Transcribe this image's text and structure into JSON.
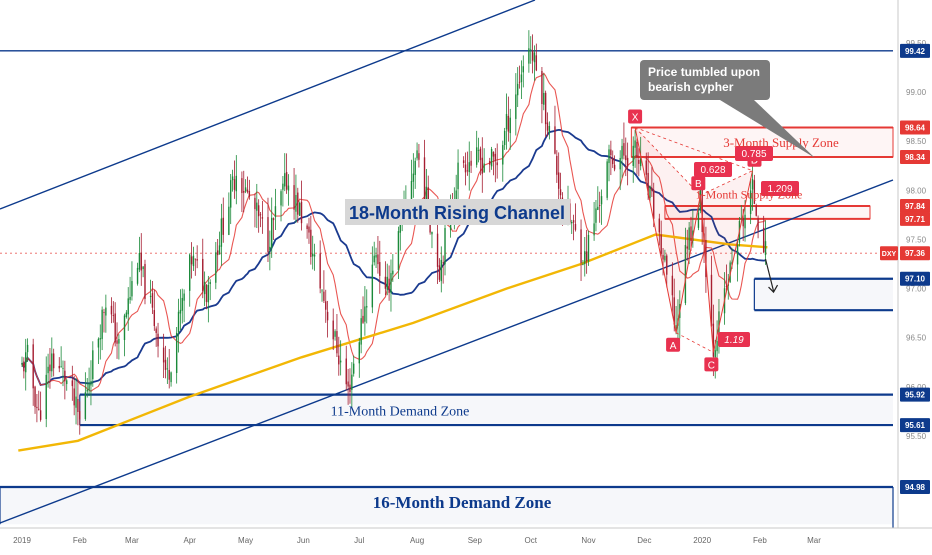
{
  "chart_data": {
    "type": "candlestick",
    "symbol": "DXY",
    "x_ticks": [
      "2019",
      "Feb",
      "Mar",
      "Apr",
      "May",
      "Jun",
      "Jul",
      "Aug",
      "Sep",
      "Oct",
      "Nov",
      "Dec",
      "2020",
      "Feb",
      "Mar"
    ],
    "y_ticks": [
      "99.50",
      "99.00",
      "98.50",
      "98.00",
      "97.50",
      "97.00",
      "96.50",
      "96.00",
      "95.50",
      "95.00"
    ],
    "ylim": [
      94.8,
      99.7
    ],
    "level_labels": [
      "99.42",
      "98.64",
      "98.34",
      "97.84",
      "97.71",
      "97.36",
      "97.10",
      "95.92",
      "95.61",
      "94.98"
    ],
    "current_price": {
      "label": "DXY",
      "value": "97.36"
    },
    "zones": [
      {
        "name": "3-Month Supply Zone",
        "top": 98.64,
        "bottom": 98.34,
        "color": "#e53935"
      },
      {
        "name": "1-Month Supply Zone",
        "top": 97.84,
        "bottom": 97.71,
        "color": "#e53935"
      },
      {
        "name": "11-Month Demand Zone",
        "top": 95.92,
        "bottom": 95.61,
        "color": "#0d3a8c"
      },
      {
        "name": "16-Month Demand Zone",
        "top": 94.98,
        "bottom": 94.6,
        "color": "#0d3a8c"
      },
      {
        "name": "",
        "top": 97.1,
        "bottom": 96.78,
        "color": "#0d3a8c"
      }
    ],
    "pattern_points": [
      {
        "label": "X",
        "date": "2019-11-26",
        "value": 98.64
      },
      {
        "label": "A",
        "date": "2019-12-18",
        "value": 96.55
      },
      {
        "label": "B",
        "date": "2019-12-31",
        "value": 97.95
      },
      {
        "label": "C",
        "date": "2020-01-07",
        "value": 96.35
      },
      {
        "label": "D",
        "date": "2020-01-28",
        "value": 98.2
      }
    ],
    "ratios": [
      "0.628",
      "0.785",
      "1.209",
      "1.19"
    ],
    "channel_label": "18-Month Rising Channel",
    "callout": "Price tumbled upon bearish cypher",
    "series": [
      {
        "name": "",
        "color": "#1a3a8f",
        "kind": "ma-blue"
      },
      {
        "name": "",
        "color": "#e53935",
        "kind": "ma-red"
      },
      {
        "name": "",
        "color": "#f2b705",
        "kind": "ma-yellow"
      }
    ]
  }
}
